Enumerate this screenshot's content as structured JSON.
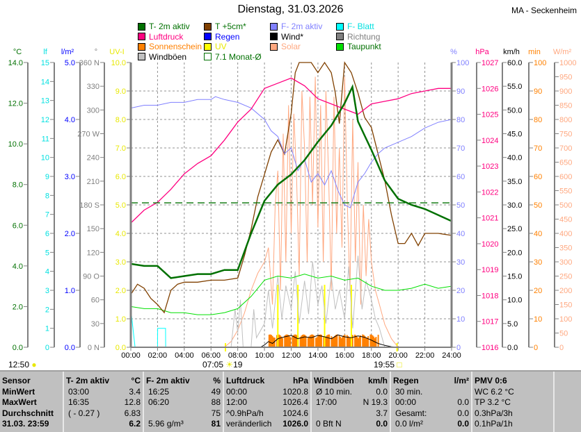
{
  "header": {
    "title": "Dienstag, 31.03.2026",
    "station": "MA - Seckenheim"
  },
  "legend": [
    {
      "label": "T- 2m aktiv",
      "color": "#007000",
      "text_color": "#007000"
    },
    {
      "label": "T +5cm*",
      "color": "#804000",
      "text_color": "#007000"
    },
    {
      "label": "F- 2m aktiv",
      "color": "#8080ff",
      "text_color": "#8080ff"
    },
    {
      "label": "F- Blatt",
      "color": "#00ffff",
      "text_color": "#00e0e0"
    },
    {
      "label": "Luftdruck",
      "color": "#ff0080",
      "text_color": "#ff0080"
    },
    {
      "label": "Regen",
      "color": "#0000ff",
      "text_color": "#0000ff"
    },
    {
      "label": "Wind*",
      "color": "#000000",
      "text_color": "#000000"
    },
    {
      "label": "Richtung",
      "color": "#808080",
      "text_color": "#808080"
    },
    {
      "label": "Sonnenschein",
      "color": "#ff8000",
      "text_color": "#ff8000"
    },
    {
      "label": "UV",
      "color": "#ffff00",
      "text_color": "#e8e800"
    },
    {
      "label": "Solar",
      "color": "#ffa880",
      "text_color": "#ffa880"
    },
    {
      "label": "Taupunkt",
      "color": "#00e000",
      "text_color": "#007000"
    },
    {
      "label": "Windböen",
      "color": "#c0c0c0",
      "text_color": "#000000"
    },
    {
      "label": "7.1 Monat-Ø",
      "color": "#007000",
      "text_color": "#007000",
      "outline": true
    }
  ],
  "sun": {
    "now": "12:50",
    "sunrise": "07:05",
    "uv_max": "19",
    "sunset": "19:55"
  },
  "chart_data": {
    "type": "line",
    "x_ticks": [
      "00:00",
      "02:00",
      "04:00",
      "06:00",
      "08:00",
      "10:00",
      "12:00",
      "14:00",
      "16:00",
      "18:00",
      "20:00",
      "22:00",
      "24:00"
    ],
    "xlim": [
      0,
      24
    ],
    "grid": true,
    "axes": [
      {
        "id": "T",
        "unit": "°C",
        "side": "left",
        "color": "#007000",
        "range": [
          0,
          14
        ],
        "ticks": [
          "0.0",
          "2.0",
          "4.0",
          "6.0",
          "8.0",
          "10.0",
          "12.0",
          "14.0"
        ]
      },
      {
        "id": "lf",
        "unit": "lf",
        "side": "left",
        "color": "#00e0e0",
        "range": [
          0,
          15
        ],
        "ticks": [
          "0",
          "1",
          "2",
          "3",
          "4",
          "5",
          "6",
          "7",
          "8",
          "9",
          "10",
          "11",
          "12",
          "13",
          "14",
          "15"
        ]
      },
      {
        "id": "rain",
        "unit": "l/m²",
        "side": "left",
        "color": "#0000ff",
        "range": [
          0,
          5
        ],
        "ticks": [
          "0.0",
          "1.0",
          "2.0",
          "3.0",
          "4.0",
          "5.0"
        ]
      },
      {
        "id": "dir",
        "unit": "°",
        "side": "left",
        "color": "#808080",
        "range": [
          0,
          360
        ],
        "ticks": [
          "0 N",
          "30",
          "60",
          "90 O",
          "120",
          "150",
          "180 S",
          "210",
          "240",
          "270 W",
          "300",
          "330",
          "360 N"
        ]
      },
      {
        "id": "uv",
        "unit": "UV-I",
        "side": "left",
        "color": "#e8e800",
        "range": [
          0,
          10
        ],
        "ticks": [
          "0.0",
          "1.0",
          "2.0",
          "3.0",
          "4.0",
          "5.0",
          "6.0",
          "7.0",
          "8.0",
          "9.0",
          "10.0"
        ]
      },
      {
        "id": "hum",
        "unit": "%",
        "side": "right",
        "color": "#8080ff",
        "range": [
          0,
          100
        ],
        "ticks": [
          "0",
          "10",
          "20",
          "30",
          "40",
          "50",
          "60",
          "70",
          "80",
          "90",
          "100"
        ]
      },
      {
        "id": "hpa",
        "unit": "hPa",
        "side": "right",
        "color": "#ff0080",
        "range": [
          1016,
          1027
        ],
        "ticks": [
          "1016",
          "1017",
          "1018",
          "1019",
          "1020",
          "1021",
          "1022",
          "1023",
          "1024",
          "1025",
          "1026",
          "1027"
        ]
      },
      {
        "id": "kmh",
        "unit": "km/h",
        "side": "right",
        "color": "#000000",
        "range": [
          0,
          60
        ],
        "ticks": [
          "0.0",
          "5.0",
          "10.0",
          "15.0",
          "20.0",
          "25.0",
          "30.0",
          "35.0",
          "40.0",
          "45.0",
          "50.0",
          "55.0",
          "60.0"
        ]
      },
      {
        "id": "min",
        "unit": "min",
        "side": "right",
        "color": "#ff8000",
        "range": [
          0,
          100
        ],
        "ticks": [
          "0",
          "10",
          "20",
          "30",
          "40",
          "50",
          "60",
          "70",
          "80",
          "90",
          "100"
        ]
      },
      {
        "id": "wm2",
        "unit": "W/m²",
        "side": "right",
        "color": "#ffa880",
        "range": [
          0,
          1000
        ],
        "ticks": [
          "0",
          "50",
          "100",
          "150",
          "200",
          "250",
          "300",
          "350",
          "400",
          "450",
          "500",
          "550",
          "600",
          "650",
          "700",
          "750",
          "800",
          "850",
          "900",
          "950",
          "1000"
        ]
      }
    ],
    "series": [
      {
        "name": "Solar",
        "axis": "wm2",
        "color": "#ffa880",
        "x": [
          0,
          7,
          7.5,
          8,
          8.5,
          9,
          9.5,
          10,
          10.3,
          10.6,
          10.8,
          11,
          11.2,
          11.4,
          11.6,
          11.8,
          12,
          12.2,
          12.4,
          12.6,
          12.8,
          13,
          13.2,
          13.4,
          13.6,
          13.8,
          14,
          14.2,
          14.4,
          14.6,
          14.8,
          15,
          15.2,
          15.4,
          15.6,
          15.8,
          16,
          16.2,
          16.4,
          16.6,
          16.8,
          17,
          17.2,
          17.4,
          17.6,
          17.8,
          18,
          18.3,
          18.6,
          19,
          19.5,
          20,
          24
        ],
        "y": [
          0,
          0,
          20,
          60,
          120,
          200,
          260,
          300,
          350,
          150,
          500,
          620,
          200,
          750,
          300,
          850,
          400,
          820,
          600,
          250,
          900,
          700,
          300,
          880,
          500,
          950,
          420,
          850,
          300,
          900,
          600,
          200,
          880,
          400,
          700,
          350,
          950,
          500,
          200,
          800,
          300,
          650,
          150,
          500,
          250,
          450,
          300,
          200,
          150,
          80,
          30,
          0,
          0
        ]
      },
      {
        "name": "Windböen",
        "axis": "kmh",
        "color": "#c0c0c0",
        "x": [
          0,
          7.5,
          7.8,
          8,
          8.2,
          8.4,
          9,
          9.2,
          9.4,
          10,
          10.3,
          10.6,
          11,
          11.3,
          11.6,
          12,
          12.3,
          12.6,
          13,
          13.3,
          13.6,
          14,
          14.3,
          14.6,
          15,
          15.3,
          15.6,
          16,
          16.3,
          16.6,
          17,
          17.3,
          17.6,
          18,
          18.3,
          18.6,
          19,
          24
        ],
        "y": [
          0,
          0,
          8,
          3,
          10,
          0,
          0,
          8,
          2,
          5,
          12,
          4,
          15,
          6,
          13,
          8,
          16,
          5,
          14,
          7,
          18,
          9,
          13,
          5,
          15,
          8,
          12,
          6,
          17,
          4,
          19.3,
          8,
          14,
          10,
          6,
          4,
          0,
          0
        ]
      },
      {
        "name": "Wind*",
        "axis": "kmh",
        "color": "#000000",
        "x": [
          0,
          9.7,
          10,
          10.3,
          10.6,
          11,
          11.5,
          12,
          12.5,
          13,
          13.5,
          14,
          14.5,
          15,
          15.5,
          16,
          16.5,
          17,
          17.5,
          18,
          18.5,
          19,
          19.5,
          20,
          24
        ],
        "y": [
          0,
          0,
          0.5,
          1.2,
          0.8,
          1.8,
          2.2,
          2.5,
          1.8,
          2.2,
          2.0,
          2.5,
          2.2,
          1.8,
          2.6,
          2.2,
          2.0,
          2.4,
          2.1,
          1.5,
          0.8,
          0.4,
          0.1,
          0,
          0
        ]
      },
      {
        "name": "Taupunkt",
        "axis": "T",
        "color": "#00e000",
        "x": [
          0,
          1,
          2,
          3,
          4,
          5,
          6,
          7,
          8,
          9,
          10,
          11,
          12,
          13,
          14,
          15,
          16,
          17,
          18,
          19,
          20,
          21,
          22,
          23,
          24
        ],
        "y": [
          2.0,
          1.9,
          1.9,
          1.7,
          1.7,
          1.6,
          1.6,
          1.7,
          1.9,
          2.5,
          3.3,
          3.5,
          3.4,
          3.6,
          3.4,
          3.5,
          3.3,
          3.4,
          3.0,
          2.8,
          2.8,
          2.9,
          3.1,
          2.9,
          3.0
        ]
      },
      {
        "name": "T +5cm*",
        "axis": "T",
        "color": "#804000",
        "x": [
          0,
          0.5,
          1,
          1.5,
          2,
          2.5,
          3,
          3.5,
          4,
          5,
          6,
          7,
          8,
          8.5,
          9,
          9.5,
          10,
          10.5,
          11,
          11.5,
          12,
          12.3,
          12.6,
          13,
          13.5,
          14,
          14.5,
          15,
          15.3,
          15.6,
          16,
          16.5,
          17,
          17.5,
          18,
          18.5,
          19,
          19.5,
          20,
          20.5,
          21,
          21.5,
          22,
          23,
          24
        ],
        "y": [
          2.6,
          3.1,
          2.9,
          2.4,
          2.1,
          1.7,
          2.8,
          3.1,
          3.2,
          3.2,
          3.3,
          3.3,
          3.4,
          4.5,
          5.8,
          7.4,
          8.5,
          9.6,
          10.2,
          9.5,
          11.5,
          13.5,
          14,
          14,
          14,
          13.5,
          14,
          13.5,
          12.5,
          11.0,
          14,
          13.5,
          12.5,
          11.3,
          10.8,
          9.5,
          8.2,
          6.5,
          5.1,
          5.1,
          5.6,
          5.0,
          5.6,
          5.6,
          5.5
        ]
      },
      {
        "name": "F- 2m aktiv",
        "axis": "hum",
        "color": "#8080ff",
        "x": [
          0,
          1,
          2,
          3,
          4,
          5,
          6,
          6.33,
          7,
          8,
          9,
          10,
          10.5,
          11,
          11.5,
          12,
          12.5,
          13,
          13.5,
          14,
          14.5,
          15,
          15.5,
          16,
          16.42,
          17,
          17.5,
          18,
          18.5,
          19,
          20,
          21,
          22,
          23,
          24
        ],
        "y": [
          84,
          85,
          85,
          86,
          86,
          87,
          87,
          88,
          87,
          86,
          84,
          80,
          76,
          74,
          68,
          70,
          62,
          66,
          58,
          61,
          57,
          62,
          55,
          50,
          49,
          58,
          61,
          65,
          68,
          70,
          72,
          74,
          77,
          79,
          80
        ]
      },
      {
        "name": "Luftdruck",
        "axis": "hpa",
        "color": "#ff0080",
        "x": [
          0,
          1,
          2,
          3,
          4,
          5,
          6,
          7,
          8,
          9,
          10,
          11,
          12,
          13,
          14,
          15,
          16,
          17,
          18,
          19,
          20,
          21,
          22,
          23,
          24
        ],
        "y": [
          1020.8,
          1021.3,
          1021.6,
          1022.1,
          1022.7,
          1023.1,
          1023.4,
          1024.0,
          1024.7,
          1025.2,
          1026.0,
          1026.2,
          1026.4,
          1026.1,
          1025.6,
          1025.4,
          1025.2,
          1025.0,
          1025.4,
          1025.5,
          1025.6,
          1025.8,
          1025.9,
          1026.0,
          1026.0
        ]
      },
      {
        "name": "T- 2m aktiv",
        "axis": "T",
        "color": "#007000",
        "x": [
          0,
          1,
          2,
          3,
          4,
          5,
          6,
          7,
          8,
          9,
          10,
          11,
          12,
          13,
          14,
          15,
          16,
          16.58,
          17,
          17.5,
          18,
          19,
          20,
          21,
          22,
          23,
          24
        ],
        "y": [
          4.1,
          4.0,
          4.0,
          3.4,
          3.5,
          3.6,
          3.6,
          3.8,
          3.8,
          5.6,
          7.2,
          8.0,
          8.5,
          9.2,
          10.1,
          10.9,
          12.0,
          12.8,
          11.1,
          10.4,
          9.7,
          8.2,
          7.3,
          7.0,
          6.8,
          6.5,
          6.2
        ]
      },
      {
        "name": "F- Blatt",
        "axis": "lf",
        "color": "#00ffff",
        "x": [
          0,
          0.3,
          0.31,
          2,
          2.01,
          2.6,
          2.61,
          24
        ],
        "y": [
          2,
          0.1,
          0,
          0,
          1,
          1,
          0,
          0
        ]
      }
    ],
    "sonnenschein": {
      "axis": "min",
      "color": "#ff8000",
      "from": 10.3,
      "to": 18.5,
      "value": 4.5
    },
    "monat_avg": {
      "axis": "T",
      "value": 7.1,
      "color": "#007000"
    }
  },
  "table": {
    "columns": [
      {
        "head": [
          "Sensor",
          ""
        ],
        "rows": [
          [
            "MinWert",
            ""
          ],
          [
            "MaxWert",
            ""
          ],
          [
            "Durchschnitt",
            ""
          ],
          [
            "31.03. 23:59",
            ""
          ]
        ],
        "bold_label": true
      },
      {
        "head": [
          "T- 2m aktiv",
          "°C"
        ],
        "rows": [
          [
            "03:00",
            "3.4"
          ],
          [
            "16:35",
            "12.8"
          ],
          [
            "( - 0.27 )",
            "6.83"
          ],
          [
            "",
            "6.2"
          ]
        ]
      },
      {
        "head": [
          "F- 2m aktiv",
          "%"
        ],
        "rows": [
          [
            "16:25",
            "49"
          ],
          [
            "06:20",
            "88"
          ],
          [
            "",
            "75"
          ],
          [
            "5.96 g/m³",
            "81"
          ]
        ]
      },
      {
        "head": [
          "Luftdruck",
          "hPa"
        ],
        "rows": [
          [
            "00:00",
            "1020.8"
          ],
          [
            "12:00",
            "1026.4"
          ],
          [
            "^0.9hPa/h",
            "1024.6"
          ],
          [
            "veränderlich",
            "1026.0"
          ]
        ]
      },
      {
        "head": [
          "Windböen",
          "km/h"
        ],
        "rows": [
          [
            "Ø 10 min.",
            "0.0"
          ],
          [
            "17:00",
            "N 19.3"
          ],
          [
            "",
            "3.7"
          ],
          [
            "0 Bft N",
            "0.0"
          ]
        ]
      },
      {
        "head": [
          "Regen",
          "l/m²"
        ],
        "rows": [
          [
            "30 min.",
            ""
          ],
          [
            "00:00",
            "0.0"
          ],
          [
            "Gesamt:",
            "0.0"
          ],
          [
            "0.0 l/m²",
            "0.0"
          ]
        ]
      },
      {
        "head": [
          "PMV 0:6",
          ""
        ],
        "rows": [
          [
            "WC 6.2 °C",
            ""
          ],
          [
            "TP 3.2 °C",
            ""
          ],
          [
            "0.3hPa/3h",
            ""
          ],
          [
            "0.1hPa/1h",
            ""
          ]
        ]
      }
    ]
  }
}
